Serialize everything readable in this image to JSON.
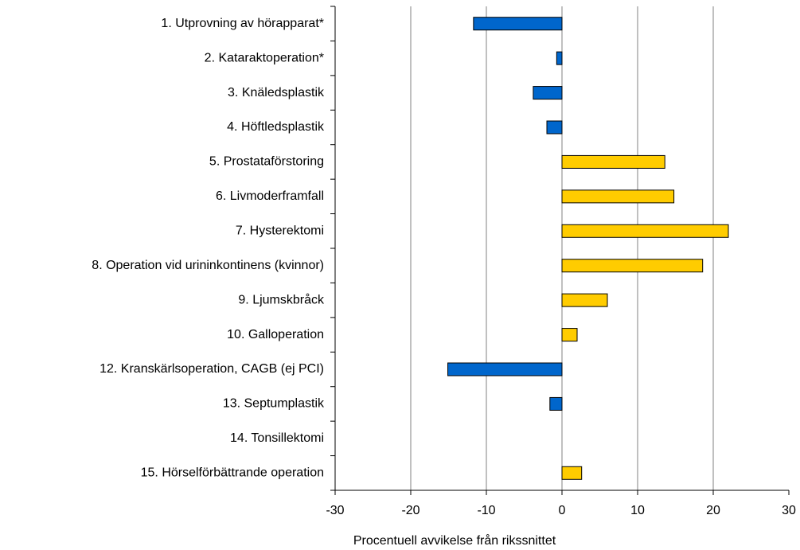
{
  "chart_data": {
    "type": "barh",
    "categories": [
      "1. Utprovning av hörapparat*",
      "2. Kataraktoperation*",
      "3. Knäledsplastik",
      "4. Höftledsplastik",
      "5. Prostataförstoring",
      "6. Livmoderframfall",
      "7. Hysterektomi",
      "8. Operation vid urininkontinens (kvinnor)",
      "9. Ljumskbråck",
      "10. Galloperation",
      "12. Kranskärlsoperation, CAGB (ej PCI)",
      "13. Septumplastik",
      "14. Tonsillektomi",
      "15. Hörselförbättrande operation"
    ],
    "values": [
      -11.7,
      -0.7,
      -3.8,
      -2.0,
      13.6,
      14.8,
      22.0,
      18.6,
      6.0,
      2.0,
      -15.1,
      -1.6,
      null,
      2.6
    ],
    "negative_color": "#0066cc",
    "positive_color": "#ffcc00",
    "xlabel": "Procentuell avvikelse från rikssnittet",
    "xlim": [
      -30,
      30
    ],
    "xticks": [
      -30,
      -20,
      -10,
      0,
      10,
      20,
      30
    ],
    "grid": true
  }
}
